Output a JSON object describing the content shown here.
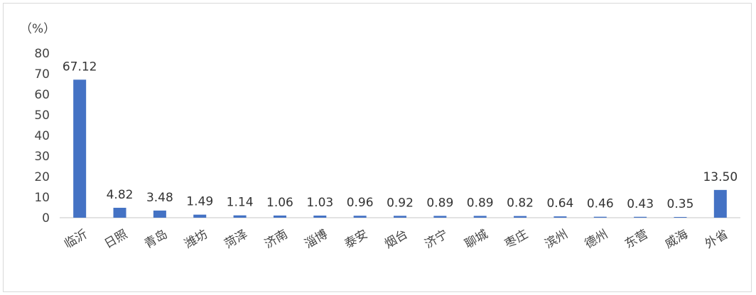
{
  "chart_data": {
    "type": "bar",
    "y_unit": "（%）",
    "categories": [
      "临沂",
      "日照",
      "青岛",
      "潍坊",
      "菏泽",
      "济南",
      "淄博",
      "泰安",
      "烟台",
      "济宁",
      "聊城",
      "枣庄",
      "滨州",
      "德州",
      "东营",
      "威海",
      "外省"
    ],
    "values": [
      67.12,
      4.82,
      3.48,
      1.49,
      1.14,
      1.06,
      1.03,
      0.96,
      0.92,
      0.89,
      0.89,
      0.82,
      0.64,
      0.46,
      0.43,
      0.35,
      13.5
    ],
    "data_labels": [
      "67.12",
      "4.82",
      "3.48",
      "1.49",
      "1.14",
      "1.06",
      "1.03",
      "0.96",
      "0.92",
      "0.89",
      "0.89",
      "0.82",
      "0.64",
      "0.46",
      "0.43",
      "0.35",
      "13.50"
    ],
    "y_ticks": [
      "0",
      "10",
      "20",
      "30",
      "40",
      "50",
      "60",
      "70",
      "80"
    ],
    "ylim": [
      0,
      80
    ],
    "grid": false,
    "legend": "none",
    "bar_color": "#4472c4",
    "axis_color": "#d9d9d9"
  }
}
